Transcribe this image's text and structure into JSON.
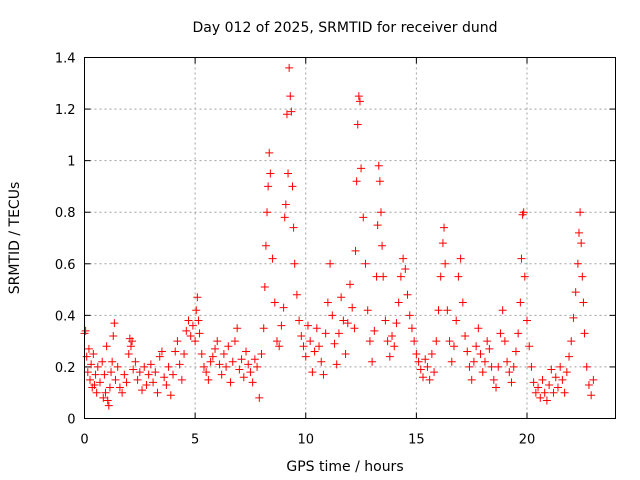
{
  "chart_data": {
    "type": "scatter",
    "title": "Day 012 of 2025, SRMTID for receiver dund",
    "xlabel": "GPS time / hours",
    "ylabel": "SRMTID / TECUs",
    "xlim": [
      0,
      24
    ],
    "ylim": [
      0,
      1.4
    ],
    "xticks": [
      0,
      5,
      10,
      15,
      20
    ],
    "xtick_labels": [
      "0",
      "5",
      "10",
      "15",
      "20"
    ],
    "yticks": [
      0,
      0.2,
      0.4,
      0.6,
      0.8,
      1,
      1.2,
      1.4
    ],
    "ytick_labels": [
      "0",
      "0.2",
      "0.4",
      "0.6",
      "0.8",
      "1",
      "1.2",
      "1.4"
    ],
    "grid": true,
    "marker": "+",
    "series": [
      {
        "name": "SRMTID",
        "color": "#ff0000",
        "points": [
          [
            0.0,
            0.33
          ],
          [
            0.05,
            0.34
          ],
          [
            0.1,
            0.24
          ],
          [
            0.15,
            0.18
          ],
          [
            0.2,
            0.27
          ],
          [
            0.25,
            0.15
          ],
          [
            0.3,
            0.21
          ],
          [
            0.35,
            0.12
          ],
          [
            0.4,
            0.25
          ],
          [
            0.45,
            0.13
          ],
          [
            0.5,
            0.17
          ],
          [
            0.55,
            0.1
          ],
          [
            0.6,
            0.2
          ],
          [
            0.7,
            0.14
          ],
          [
            0.8,
            0.22
          ],
          [
            0.85,
            0.08
          ],
          [
            0.9,
            0.17
          ],
          [
            0.95,
            0.1
          ],
          [
            1.0,
            0.28
          ],
          [
            1.05,
            0.07
          ],
          [
            1.1,
            0.05
          ],
          [
            1.15,
            0.12
          ],
          [
            1.2,
            0.18
          ],
          [
            1.25,
            0.22
          ],
          [
            1.3,
            0.32
          ],
          [
            1.35,
            0.37
          ],
          [
            1.4,
            0.15
          ],
          [
            1.5,
            0.2
          ],
          [
            1.6,
            0.12
          ],
          [
            1.7,
            0.1
          ],
          [
            1.8,
            0.17
          ],
          [
            1.9,
            0.14
          ],
          [
            2.0,
            0.25
          ],
          [
            2.05,
            0.31
          ],
          [
            2.1,
            0.28
          ],
          [
            2.15,
            0.3
          ],
          [
            2.2,
            0.19
          ],
          [
            2.3,
            0.22
          ],
          [
            2.4,
            0.15
          ],
          [
            2.5,
            0.18
          ],
          [
            2.6,
            0.11
          ],
          [
            2.7,
            0.2
          ],
          [
            2.8,
            0.13
          ],
          [
            2.9,
            0.17
          ],
          [
            3.0,
            0.21
          ],
          [
            3.1,
            0.14
          ],
          [
            3.2,
            0.18
          ],
          [
            3.3,
            0.1
          ],
          [
            3.4,
            0.24
          ],
          [
            3.5,
            0.26
          ],
          [
            3.6,
            0.16
          ],
          [
            3.7,
            0.13
          ],
          [
            3.8,
            0.2
          ],
          [
            3.9,
            0.09
          ],
          [
            4.0,
            0.17
          ],
          [
            4.1,
            0.26
          ],
          [
            4.2,
            0.3
          ],
          [
            4.3,
            0.21
          ],
          [
            4.4,
            0.15
          ],
          [
            4.5,
            0.25
          ],
          [
            4.6,
            0.34
          ],
          [
            4.7,
            0.38
          ],
          [
            4.8,
            0.32
          ],
          [
            4.9,
            0.36
          ],
          [
            5.0,
            0.3
          ],
          [
            5.05,
            0.42
          ],
          [
            5.1,
            0.47
          ],
          [
            5.15,
            0.38
          ],
          [
            5.2,
            0.33
          ],
          [
            5.3,
            0.25
          ],
          [
            5.4,
            0.2
          ],
          [
            5.5,
            0.18
          ],
          [
            5.6,
            0.15
          ],
          [
            5.7,
            0.22
          ],
          [
            5.8,
            0.24
          ],
          [
            5.9,
            0.27
          ],
          [
            6.0,
            0.3
          ],
          [
            6.1,
            0.21
          ],
          [
            6.2,
            0.17
          ],
          [
            6.3,
            0.25
          ],
          [
            6.4,
            0.2
          ],
          [
            6.5,
            0.28
          ],
          [
            6.6,
            0.14
          ],
          [
            6.7,
            0.22
          ],
          [
            6.8,
            0.3
          ],
          [
            6.9,
            0.35
          ],
          [
            7.0,
            0.19
          ],
          [
            7.1,
            0.23
          ],
          [
            7.2,
            0.16
          ],
          [
            7.3,
            0.26
          ],
          [
            7.4,
            0.21
          ],
          [
            7.5,
            0.18
          ],
          [
            7.6,
            0.14
          ],
          [
            7.7,
            0.23
          ],
          [
            7.8,
            0.2
          ],
          [
            7.9,
            0.08
          ],
          [
            8.0,
            0.25
          ],
          [
            8.1,
            0.35
          ],
          [
            8.15,
            0.51
          ],
          [
            8.2,
            0.67
          ],
          [
            8.25,
            0.8
          ],
          [
            8.3,
            0.9
          ],
          [
            8.35,
            1.03
          ],
          [
            8.4,
            0.95
          ],
          [
            8.5,
            0.62
          ],
          [
            8.6,
            0.45
          ],
          [
            8.7,
            0.3
          ],
          [
            8.8,
            0.28
          ],
          [
            8.9,
            0.36
          ],
          [
            9.0,
            0.43
          ],
          [
            9.05,
            0.78
          ],
          [
            9.1,
            0.83
          ],
          [
            9.15,
            1.18
          ],
          [
            9.2,
            0.95
          ],
          [
            9.25,
            1.36
          ],
          [
            9.3,
            1.25
          ],
          [
            9.35,
            1.19
          ],
          [
            9.4,
            0.9
          ],
          [
            9.45,
            0.74
          ],
          [
            9.5,
            0.6
          ],
          [
            9.6,
            0.48
          ],
          [
            9.7,
            0.38
          ],
          [
            9.8,
            0.32
          ],
          [
            9.9,
            0.28
          ],
          [
            10.0,
            0.24
          ],
          [
            10.1,
            0.36
          ],
          [
            10.2,
            0.3
          ],
          [
            10.3,
            0.18
          ],
          [
            10.4,
            0.26
          ],
          [
            10.5,
            0.35
          ],
          [
            10.6,
            0.28
          ],
          [
            10.7,
            0.22
          ],
          [
            10.8,
            0.17
          ],
          [
            10.9,
            0.33
          ],
          [
            11.0,
            0.45
          ],
          [
            11.1,
            0.6
          ],
          [
            11.2,
            0.4
          ],
          [
            11.3,
            0.29
          ],
          [
            11.4,
            0.21
          ],
          [
            11.5,
            0.33
          ],
          [
            11.6,
            0.47
          ],
          [
            11.7,
            0.38
          ],
          [
            11.8,
            0.25
          ],
          [
            11.9,
            0.37
          ],
          [
            12.0,
            0.52
          ],
          [
            12.1,
            0.43
          ],
          [
            12.2,
            0.35
          ],
          [
            12.25,
            0.65
          ],
          [
            12.3,
            0.92
          ],
          [
            12.35,
            1.14
          ],
          [
            12.4,
            1.25
          ],
          [
            12.45,
            1.23
          ],
          [
            12.5,
            0.97
          ],
          [
            12.6,
            0.78
          ],
          [
            12.7,
            0.6
          ],
          [
            12.8,
            0.42
          ],
          [
            12.9,
            0.3
          ],
          [
            13.0,
            0.22
          ],
          [
            13.1,
            0.34
          ],
          [
            13.2,
            0.55
          ],
          [
            13.25,
            0.75
          ],
          [
            13.3,
            0.98
          ],
          [
            13.35,
            0.92
          ],
          [
            13.4,
            0.8
          ],
          [
            13.45,
            0.67
          ],
          [
            13.5,
            0.55
          ],
          [
            13.6,
            0.38
          ],
          [
            13.7,
            0.3
          ],
          [
            13.8,
            0.24
          ],
          [
            13.9,
            0.32
          ],
          [
            14.0,
            0.28
          ],
          [
            14.1,
            0.37
          ],
          [
            14.2,
            0.45
          ],
          [
            14.3,
            0.55
          ],
          [
            14.4,
            0.62
          ],
          [
            14.5,
            0.58
          ],
          [
            14.6,
            0.48
          ],
          [
            14.7,
            0.4
          ],
          [
            14.8,
            0.35
          ],
          [
            14.9,
            0.3
          ],
          [
            15.0,
            0.25
          ],
          [
            15.1,
            0.22
          ],
          [
            15.2,
            0.19
          ],
          [
            15.3,
            0.16
          ],
          [
            15.4,
            0.23
          ],
          [
            15.5,
            0.2
          ],
          [
            15.6,
            0.15
          ],
          [
            15.7,
            0.25
          ],
          [
            15.8,
            0.18
          ],
          [
            15.9,
            0.3
          ],
          [
            16.0,
            0.42
          ],
          [
            16.1,
            0.55
          ],
          [
            16.2,
            0.68
          ],
          [
            16.25,
            0.74
          ],
          [
            16.3,
            0.6
          ],
          [
            16.4,
            0.42
          ],
          [
            16.5,
            0.3
          ],
          [
            16.6,
            0.22
          ],
          [
            16.7,
            0.28
          ],
          [
            16.8,
            0.38
          ],
          [
            16.9,
            0.55
          ],
          [
            17.0,
            0.62
          ],
          [
            17.1,
            0.45
          ],
          [
            17.2,
            0.32
          ],
          [
            17.3,
            0.26
          ],
          [
            17.4,
            0.2
          ],
          [
            17.5,
            0.15
          ],
          [
            17.6,
            0.22
          ],
          [
            17.7,
            0.28
          ],
          [
            17.8,
            0.35
          ],
          [
            17.9,
            0.25
          ],
          [
            18.0,
            0.18
          ],
          [
            18.1,
            0.22
          ],
          [
            18.2,
            0.3
          ],
          [
            18.3,
            0.27
          ],
          [
            18.4,
            0.2
          ],
          [
            18.5,
            0.15
          ],
          [
            18.6,
            0.12
          ],
          [
            18.7,
            0.2
          ],
          [
            18.8,
            0.33
          ],
          [
            18.9,
            0.42
          ],
          [
            19.0,
            0.3
          ],
          [
            19.1,
            0.22
          ],
          [
            19.2,
            0.18
          ],
          [
            19.3,
            0.14
          ],
          [
            19.4,
            0.2
          ],
          [
            19.5,
            0.26
          ],
          [
            19.6,
            0.33
          ],
          [
            19.7,
            0.45
          ],
          [
            19.75,
            0.62
          ],
          [
            19.8,
            0.79
          ],
          [
            19.85,
            0.8
          ],
          [
            19.9,
            0.55
          ],
          [
            20.0,
            0.38
          ],
          [
            20.1,
            0.28
          ],
          [
            20.2,
            0.2
          ],
          [
            20.3,
            0.14
          ],
          [
            20.4,
            0.1
          ],
          [
            20.5,
            0.12
          ],
          [
            20.6,
            0.08
          ],
          [
            20.7,
            0.15
          ],
          [
            20.8,
            0.1
          ],
          [
            20.9,
            0.07
          ],
          [
            21.0,
            0.13
          ],
          [
            21.1,
            0.19
          ],
          [
            21.2,
            0.1
          ],
          [
            21.3,
            0.16
          ],
          [
            21.4,
            0.12
          ],
          [
            21.5,
            0.2
          ],
          [
            21.6,
            0.15
          ],
          [
            21.7,
            0.1
          ],
          [
            21.8,
            0.18
          ],
          [
            21.9,
            0.24
          ],
          [
            22.0,
            0.3
          ],
          [
            22.1,
            0.39
          ],
          [
            22.2,
            0.49
          ],
          [
            22.3,
            0.6
          ],
          [
            22.35,
            0.72
          ],
          [
            22.4,
            0.8
          ],
          [
            22.45,
            0.68
          ],
          [
            22.5,
            0.55
          ],
          [
            22.55,
            0.45
          ],
          [
            22.6,
            0.33
          ],
          [
            22.7,
            0.2
          ],
          [
            22.8,
            0.13
          ],
          [
            22.9,
            0.09
          ],
          [
            23.0,
            0.15
          ]
        ]
      }
    ]
  }
}
